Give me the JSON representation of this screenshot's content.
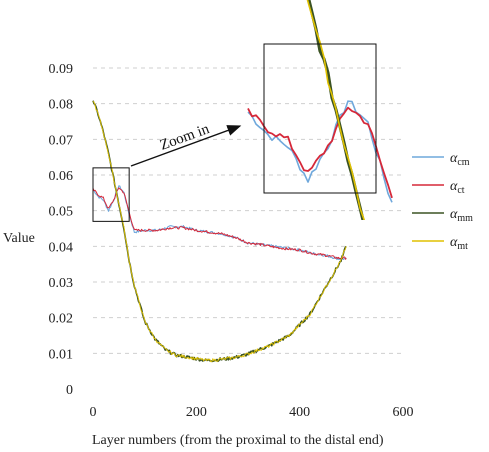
{
  "chart_data": {
    "type": "line",
    "title": "",
    "xlabel": "Layer numbers (from the proximal to the distal end)",
    "ylabel": "Value",
    "xlim": [
      0,
      600
    ],
    "ylim": [
      0,
      0.09
    ],
    "xticks": [
      0,
      200,
      400,
      600
    ],
    "yticks": [
      0,
      0.01,
      0.02,
      0.03,
      0.04,
      0.05,
      0.06,
      0.07,
      0.08,
      0.09
    ],
    "xtick_labels": [
      "0",
      "200",
      "400",
      "600"
    ],
    "ytick_labels": [
      "0",
      "0.01",
      "0.02",
      "0.03",
      "0.04",
      "0.05",
      "0.06",
      "0.07",
      "0.08",
      "0.09"
    ],
    "grid": "horizontal dashed",
    "legend_position": "right",
    "annotation": "Zoom in",
    "series": [
      {
        "name": "α",
        "sub": "cm",
        "color": "#6fa8dc",
        "x": [
          0,
          10,
          20,
          30,
          40,
          50,
          60,
          70,
          80,
          100,
          125,
          150,
          175,
          200,
          225,
          250,
          275,
          300,
          325,
          350,
          375,
          400,
          425,
          450,
          475,
          490
        ],
        "values": [
          0.056,
          0.054,
          0.053,
          0.05,
          0.053,
          0.057,
          0.055,
          0.049,
          0.044,
          0.0445,
          0.0445,
          0.0455,
          0.0455,
          0.0445,
          0.044,
          0.0435,
          0.0425,
          0.041,
          0.0405,
          0.04,
          0.0395,
          0.039,
          0.038,
          0.0375,
          0.0365,
          0.0365
        ]
      },
      {
        "name": "α",
        "sub": "ct",
        "color": "#d62839",
        "x": [
          0,
          10,
          20,
          30,
          40,
          50,
          60,
          70,
          80,
          100,
          125,
          150,
          175,
          200,
          225,
          250,
          275,
          300,
          325,
          350,
          375,
          400,
          425,
          450,
          475,
          490
        ],
        "values": [
          0.056,
          0.0545,
          0.0535,
          0.0505,
          0.053,
          0.0565,
          0.055,
          0.0495,
          0.0445,
          0.0445,
          0.0445,
          0.0452,
          0.0452,
          0.0445,
          0.044,
          0.0435,
          0.0425,
          0.041,
          0.0405,
          0.0398,
          0.0393,
          0.039,
          0.038,
          0.0375,
          0.0367,
          0.0367
        ]
      },
      {
        "name": "α",
        "sub": "mm",
        "color": "#3b5323",
        "x": [
          0,
          10,
          20,
          30,
          40,
          50,
          60,
          70,
          80,
          90,
          100,
          120,
          140,
          160,
          180,
          200,
          220,
          240,
          260,
          280,
          300,
          320,
          340,
          360,
          380,
          400,
          420,
          440,
          460,
          480,
          490
        ],
        "values": [
          0.081,
          0.077,
          0.072,
          0.066,
          0.059,
          0.052,
          0.045,
          0.036,
          0.029,
          0.024,
          0.019,
          0.014,
          0.011,
          0.0095,
          0.009,
          0.0085,
          0.008,
          0.0082,
          0.0085,
          0.009,
          0.0098,
          0.011,
          0.012,
          0.0135,
          0.015,
          0.018,
          0.021,
          0.026,
          0.031,
          0.036,
          0.04
        ]
      },
      {
        "name": "α",
        "sub": "mt",
        "color": "#e0c100",
        "x": [
          0,
          10,
          20,
          30,
          40,
          50,
          60,
          70,
          80,
          90,
          100,
          120,
          140,
          160,
          180,
          200,
          220,
          240,
          260,
          280,
          300,
          320,
          340,
          360,
          380,
          400,
          420,
          440,
          460,
          480,
          490
        ],
        "values": [
          0.081,
          0.077,
          0.072,
          0.066,
          0.059,
          0.052,
          0.045,
          0.036,
          0.029,
          0.024,
          0.019,
          0.014,
          0.011,
          0.0095,
          0.009,
          0.0085,
          0.008,
          0.0082,
          0.0085,
          0.009,
          0.0098,
          0.011,
          0.012,
          0.0135,
          0.015,
          0.018,
          0.021,
          0.026,
          0.031,
          0.036,
          0.04
        ]
      }
    ],
    "zoom_region": {
      "xlim": [
        0,
        70
      ],
      "ylim": [
        0.047,
        0.062
      ]
    }
  }
}
